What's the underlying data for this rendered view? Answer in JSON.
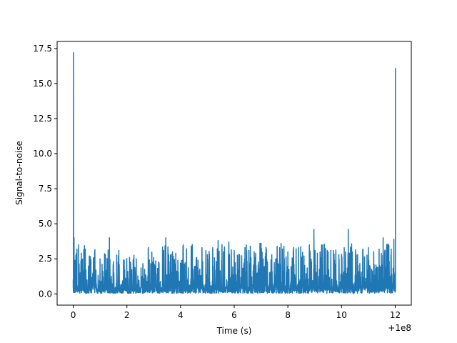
{
  "chart_data": {
    "type": "line",
    "xlabel": "Time (s)",
    "ylabel": "Signal-to-noise",
    "x_offset_label": "+1e8",
    "xlim": [
      -0.6,
      12.6
    ],
    "ylim": [
      -0.8,
      18.0
    ],
    "xticks": [
      0,
      2,
      4,
      6,
      8,
      10,
      12
    ],
    "xtick_labels": [
      "0",
      "2",
      "4",
      "6",
      "8",
      "10",
      "12"
    ],
    "yticks": [
      0.0,
      2.5,
      5.0,
      7.5,
      10.0,
      12.5,
      15.0,
      17.5
    ],
    "ytick_labels": [
      "0.0",
      "2.5",
      "5.0",
      "7.5",
      "10.0",
      "12.5",
      "15.0",
      "17.5"
    ],
    "grid": false,
    "line_color": "#1f77b4",
    "noise_floor": [
      0.05,
      3.3
    ],
    "series": [
      {
        "x": [
          0.0,
          0.01,
          0.03,
          0.06,
          0.1,
          0.14,
          0.2,
          0.3,
          0.45,
          0.6,
          0.8,
          1.0,
          1.2,
          1.35,
          1.5,
          1.7,
          1.9,
          2.1,
          2.35,
          2.6,
          2.8,
          3.0,
          3.2,
          3.45,
          3.7,
          3.9,
          4.1,
          4.4,
          4.6,
          4.8,
          5.0,
          5.2,
          5.4,
          5.6,
          5.8,
          6.0,
          6.2,
          6.4,
          6.6,
          6.8,
          7.0,
          7.2,
          7.4,
          7.6,
          7.8,
          8.0,
          8.2,
          8.4,
          8.6,
          8.8,
          8.97,
          9.1,
          9.3,
          9.5,
          9.7,
          9.9,
          10.1,
          10.25,
          10.4,
          10.6,
          10.8,
          11.0,
          11.2,
          11.4,
          11.55,
          11.7,
          11.85,
          11.95,
          12.0,
          12.01
        ],
        "y": [
          1.0,
          17.2,
          4.0,
          2.4,
          2.6,
          3.2,
          3.5,
          2.9,
          3.2,
          2.7,
          3.0,
          2.5,
          2.8,
          4.0,
          2.3,
          3.1,
          2.4,
          2.6,
          2.5,
          2.0,
          3.3,
          2.6,
          2.2,
          4.0,
          3.0,
          2.4,
          3.5,
          3.4,
          2.6,
          3.1,
          2.8,
          3.3,
          3.8,
          3.0,
          3.7,
          3.1,
          2.7,
          3.3,
          3.4,
          2.9,
          3.6,
          3.2,
          2.8,
          3.4,
          3.2,
          3.0,
          3.1,
          3.3,
          2.7,
          3.5,
          4.6,
          2.9,
          3.5,
          3.0,
          3.1,
          2.8,
          3.3,
          4.6,
          3.0,
          2.8,
          3.2,
          3.3,
          3.0,
          3.2,
          4.0,
          3.4,
          3.2,
          3.9,
          1.5,
          16.1
        ]
      }
    ]
  }
}
